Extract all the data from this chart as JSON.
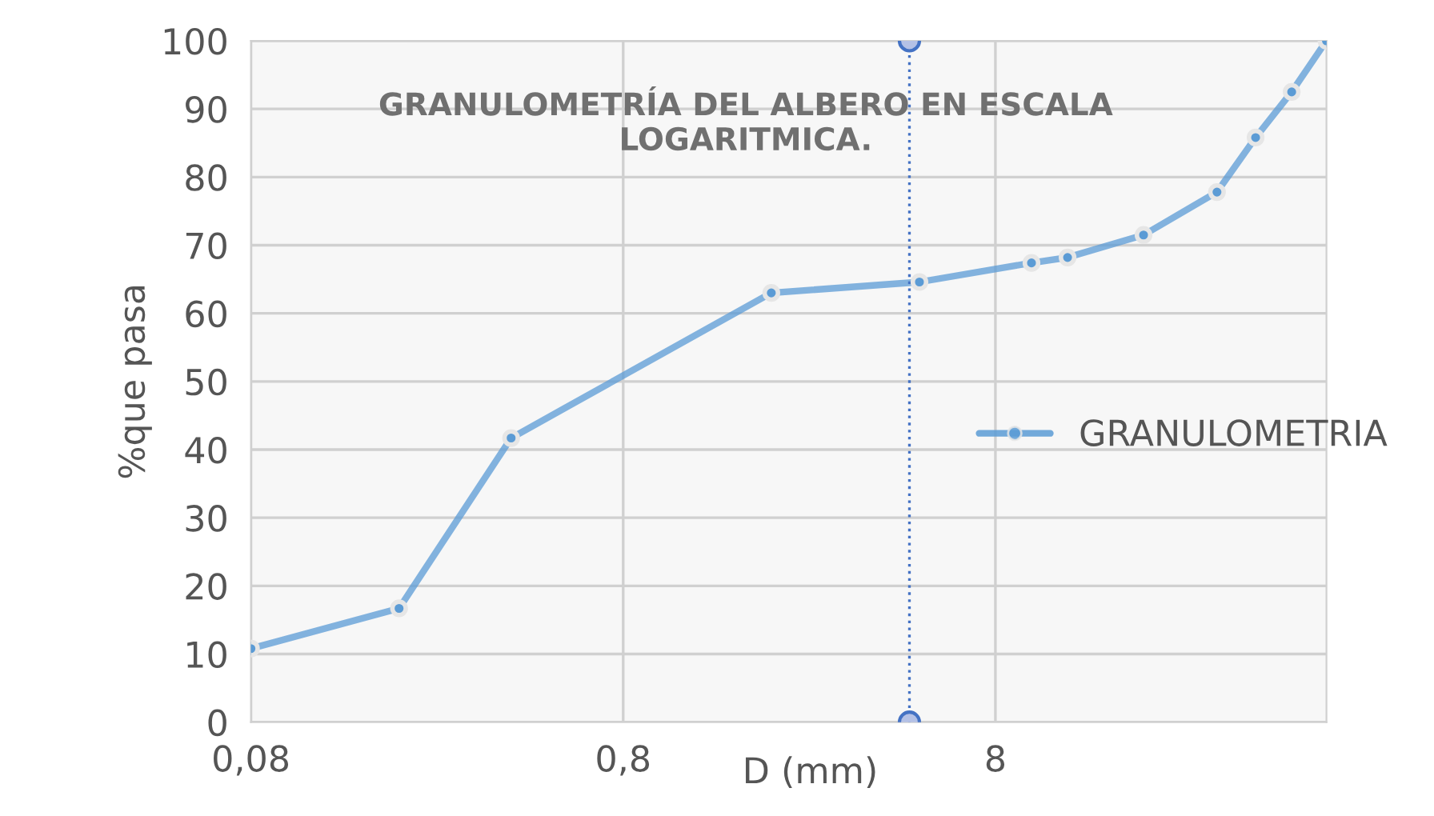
{
  "chart_data": {
    "type": "line",
    "title": "GRANULOMETRÍA DEL ALBERO EN ESCALA\nLOGARITMICA.",
    "xlabel": "D (mm)",
    "ylabel": "%que pasa",
    "log": "x",
    "xlim": [
      0.08,
      62
    ],
    "xticks": [
      {
        "value": 0.08,
        "label": "0,08"
      },
      {
        "value": 0.8,
        "label": "0,8"
      },
      {
        "value": 8,
        "label": "8"
      }
    ],
    "ylim": [
      0,
      100
    ],
    "yticks": [
      0,
      10,
      20,
      30,
      40,
      50,
      60,
      70,
      80,
      90,
      100
    ],
    "grid": true,
    "legend": "right",
    "marker": "circle",
    "series": [
      {
        "name": "GRANULOMETRIA",
        "color": "#5b9bd5",
        "line_style": "solid",
        "x": [
          0.08,
          0.2,
          0.4,
          2,
          5,
          10,
          12.5,
          20,
          31.5,
          40,
          50,
          62
        ],
        "values": [
          10.8,
          16.7,
          41.7,
          63,
          64.6,
          67.4,
          68.2,
          71.5,
          77.8,
          85.8,
          92.5,
          100
        ]
      },
      {
        "color": "#4472c4",
        "line_style": "dotted",
        "x": [
          4.7,
          4.7
        ],
        "values": [
          0,
          100
        ]
      }
    ]
  }
}
